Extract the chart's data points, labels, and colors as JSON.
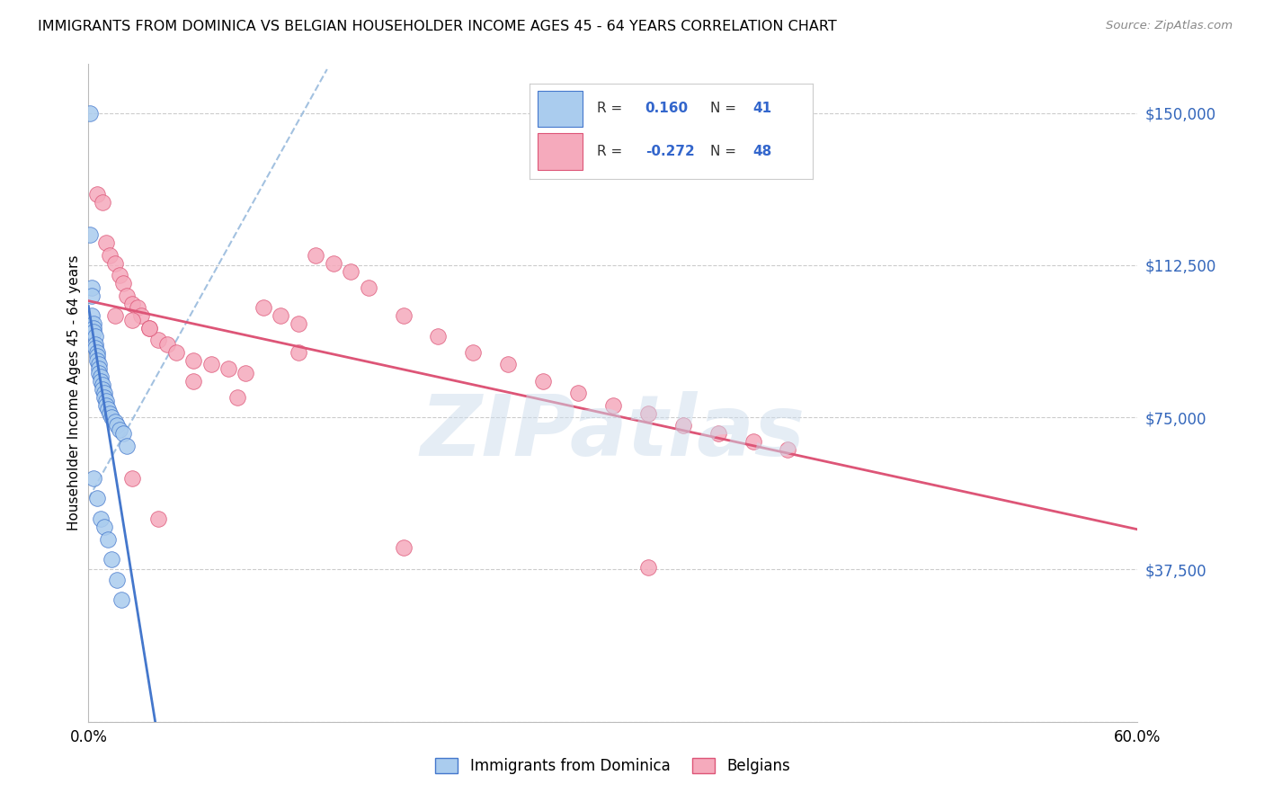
{
  "title": "IMMIGRANTS FROM DOMINICA VS BELGIAN HOUSEHOLDER INCOME AGES 45 - 64 YEARS CORRELATION CHART",
  "source": "Source: ZipAtlas.com",
  "ylabel": "Householder Income Ages 45 - 64 years",
  "r_dominica": 0.16,
  "n_dominica": 41,
  "r_belgians": -0.272,
  "n_belgians": 48,
  "xlim": [
    0.0,
    0.6
  ],
  "ylim": [
    0,
    162000
  ],
  "yticks": [
    0,
    37500,
    75000,
    112500,
    150000
  ],
  "ytick_labels": [
    "",
    "$37,500",
    "$75,000",
    "$112,500",
    "$150,000"
  ],
  "xtick_positions": [
    0.0,
    0.1,
    0.2,
    0.3,
    0.4,
    0.5,
    0.6
  ],
  "xtick_labels": [
    "0.0%",
    "",
    "",
    "",
    "",
    "",
    "60.0%"
  ],
  "color_dominica": "#aaccee",
  "color_belgians": "#f5aabc",
  "line_color_dominica": "#4477cc",
  "line_color_belgians": "#dd5577",
  "dashed_color": "#99bbdd",
  "background_color": "#ffffff",
  "watermark": "ZIPatlas",
  "grid_color": "#cccccc",
  "dominica_x": [
    0.001,
    0.001,
    0.002,
    0.002,
    0.002,
    0.003,
    0.003,
    0.003,
    0.004,
    0.004,
    0.004,
    0.005,
    0.005,
    0.005,
    0.006,
    0.006,
    0.006,
    0.007,
    0.007,
    0.008,
    0.008,
    0.009,
    0.009,
    0.01,
    0.01,
    0.011,
    0.012,
    0.013,
    0.015,
    0.016,
    0.018,
    0.02,
    0.003,
    0.005,
    0.007,
    0.009,
    0.011,
    0.013,
    0.016,
    0.019,
    0.022
  ],
  "dominica_y": [
    150000,
    120000,
    107000,
    105000,
    100000,
    98000,
    97000,
    96000,
    95000,
    93000,
    92000,
    91000,
    90000,
    89000,
    88000,
    87000,
    86000,
    85000,
    84000,
    83000,
    82000,
    81000,
    80000,
    79000,
    78000,
    77000,
    76000,
    75000,
    74000,
    73000,
    72000,
    71000,
    60000,
    55000,
    50000,
    48000,
    45000,
    40000,
    35000,
    30000,
    68000
  ],
  "belgians_x": [
    0.005,
    0.008,
    0.01,
    0.012,
    0.015,
    0.018,
    0.02,
    0.022,
    0.025,
    0.028,
    0.03,
    0.035,
    0.04,
    0.045,
    0.05,
    0.06,
    0.07,
    0.08,
    0.09,
    0.1,
    0.11,
    0.12,
    0.13,
    0.14,
    0.15,
    0.16,
    0.18,
    0.2,
    0.22,
    0.24,
    0.26,
    0.28,
    0.3,
    0.32,
    0.34,
    0.36,
    0.38,
    0.4,
    0.015,
    0.025,
    0.035,
    0.06,
    0.085,
    0.12,
    0.18,
    0.32,
    0.025,
    0.04
  ],
  "belgians_y": [
    130000,
    128000,
    118000,
    115000,
    113000,
    110000,
    108000,
    105000,
    103000,
    102000,
    100000,
    97000,
    94000,
    93000,
    91000,
    89000,
    88000,
    87000,
    86000,
    102000,
    100000,
    98000,
    115000,
    113000,
    111000,
    107000,
    100000,
    95000,
    91000,
    88000,
    84000,
    81000,
    78000,
    76000,
    73000,
    71000,
    69000,
    67000,
    100000,
    99000,
    97000,
    84000,
    80000,
    91000,
    43000,
    38000,
    60000,
    50000
  ]
}
